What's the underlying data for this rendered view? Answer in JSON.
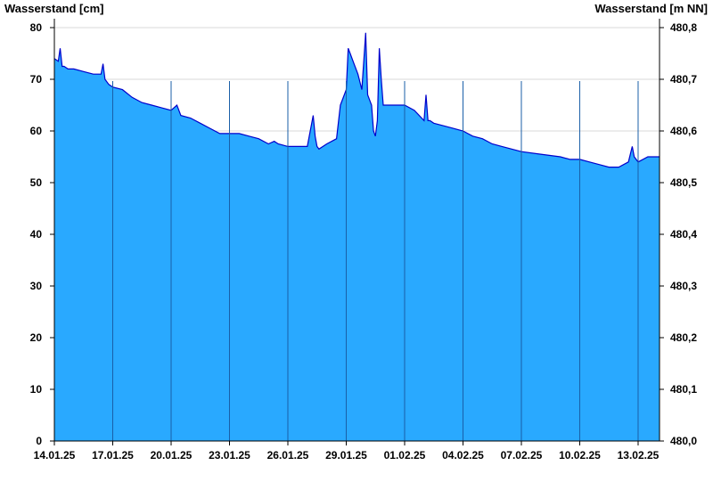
{
  "chart_data": {
    "type": "area",
    "y_left_title": "Wasserstand [cm]",
    "y_right_title": "Wasserstand [m NN]",
    "ylim": [
      0,
      80
    ],
    "y_right_lim": [
      480.0,
      480.8
    ],
    "y_left_ticks": [
      "0",
      "10",
      "20",
      "30",
      "40",
      "50",
      "60",
      "70",
      "80"
    ],
    "y_right_ticks": [
      "480,0",
      "480,1",
      "480,2",
      "480,3",
      "480,4",
      "480,5",
      "480,6",
      "480,7",
      "480,8"
    ],
    "x_ticks": [
      "14.01.25",
      "17.01.25",
      "20.01.25",
      "23.01.25",
      "26.01.25",
      "29.01.25",
      "01.02.25",
      "04.02.25",
      "07.02.25",
      "10.02.25",
      "13.02.25"
    ],
    "x_tick_days": [
      0,
      3,
      6,
      9,
      12,
      15,
      18,
      21,
      24,
      27,
      30
    ],
    "xlim": [
      0,
      31.1
    ],
    "grid": "horizontal",
    "vertical_markers": "daily every 3 days",
    "fill_color": "#29a9ff",
    "line_color": "#0000cc",
    "series": [
      {
        "x": [
          0,
          0.2,
          0.3,
          0.4,
          0.5,
          0.7,
          1.0,
          1.5,
          2.0,
          2.4,
          2.5,
          2.6,
          2.8,
          3.0,
          3.5,
          4.0,
          4.5,
          5.0,
          5.5,
          6.0,
          6.3,
          6.5,
          7.0,
          7.5,
          8.0,
          8.5,
          9.0,
          9.5,
          10.0,
          10.5,
          11.0,
          11.3,
          11.5,
          12.0,
          12.5,
          13.0,
          13.3,
          13.4,
          13.5,
          13.6,
          14.0,
          14.5,
          14.7,
          15.0,
          15.1,
          15.2,
          15.4,
          15.6,
          15.8,
          16.0,
          16.1,
          16.2,
          16.3,
          16.4,
          16.5,
          16.6,
          16.7,
          16.8,
          16.9,
          17.0,
          17.5,
          18.0,
          18.5,
          19.0,
          19.1,
          19.2,
          19.3,
          19.5,
          20.0,
          20.5,
          21.0,
          21.5,
          22.0,
          22.5,
          23.0,
          23.5,
          24.0,
          25.0,
          26.0,
          26.5,
          27.0,
          27.5,
          28.0,
          28.5,
          29.0,
          29.5,
          29.7,
          29.8,
          30.0,
          30.5,
          31.1
        ],
        "values": [
          74,
          73.5,
          76,
          72.5,
          72.5,
          72,
          72,
          71.5,
          71,
          71,
          73,
          70,
          69,
          68.5,
          68,
          66.5,
          65.5,
          65,
          64.5,
          64,
          65,
          63,
          62.5,
          61.5,
          60.5,
          59.5,
          59.5,
          59.5,
          59,
          58.5,
          57.5,
          58,
          57.5,
          57,
          57,
          57,
          63,
          59,
          57,
          56.5,
          57.5,
          58.5,
          65,
          68,
          76,
          75,
          73,
          71,
          68,
          79,
          67,
          66,
          65,
          60,
          59,
          62,
          76,
          70,
          65,
          65,
          65,
          65,
          64,
          62,
          67,
          62,
          62,
          61.5,
          61,
          60.5,
          60,
          59,
          58.5,
          57.5,
          57,
          56.5,
          56,
          55.5,
          55,
          54.5,
          54.5,
          54,
          53.5,
          53,
          53,
          54,
          57,
          55,
          54,
          55,
          55
        ]
      }
    ]
  }
}
